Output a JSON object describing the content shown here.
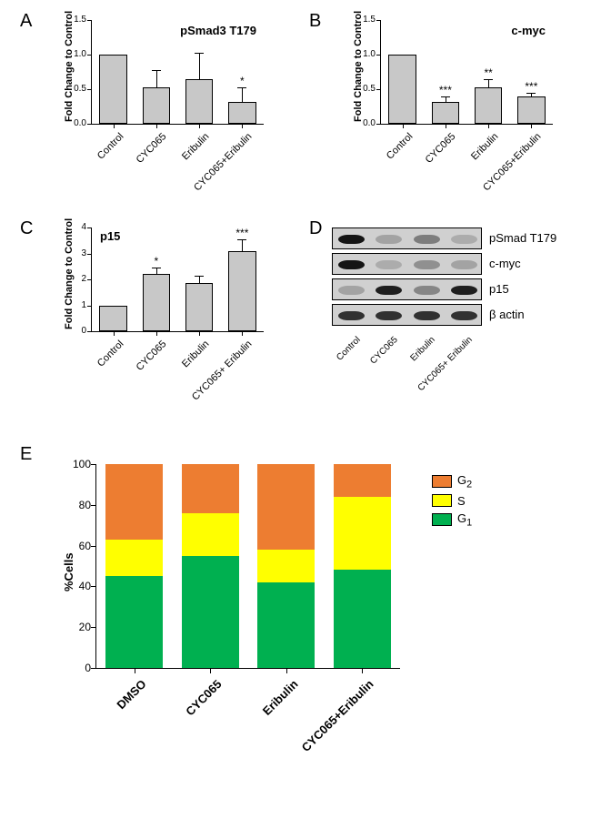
{
  "panel_labels": {
    "A": "A",
    "B": "B",
    "C": "C",
    "D": "D",
    "E": "E"
  },
  "ylabel_bars": "Fold Change to Control",
  "ylabel_stacked": "%Cells",
  "bar_color": "#c8c8c8",
  "bar_border": "#000000",
  "background": "#ffffff",
  "panelA": {
    "title": "pSmad3 T179",
    "categories": [
      "Control",
      "CYC065",
      "Eribulin",
      "CYC065+Eribulin"
    ],
    "values": [
      1.0,
      0.52,
      0.65,
      0.32
    ],
    "errors": [
      0,
      0.25,
      0.38,
      0.2
    ],
    "sig": [
      "",
      "",
      "",
      "*"
    ],
    "ylim": [
      0,
      1.5
    ],
    "yticks": [
      0.0,
      0.5,
      1.0,
      1.5
    ],
    "bar_width": 0.65
  },
  "panelB": {
    "title": "c-myc",
    "categories": [
      "Control",
      "CYC065",
      "Eribulin",
      "CYC065+Eribulin"
    ],
    "values": [
      1.0,
      0.32,
      0.52,
      0.4
    ],
    "errors": [
      0,
      0.07,
      0.13,
      0.05
    ],
    "sig": [
      "",
      "***",
      "**",
      "***"
    ],
    "ylim": [
      0,
      1.5
    ],
    "yticks": [
      0.0,
      0.5,
      1.0,
      1.5
    ],
    "bar_width": 0.65
  },
  "panelC": {
    "title": "p15",
    "categories": [
      "Control",
      "CYC065",
      "Eribulin",
      "CYC065+ Eribulin"
    ],
    "values": [
      1.0,
      2.2,
      1.85,
      3.1
    ],
    "errors": [
      0,
      0.25,
      0.3,
      0.45
    ],
    "sig": [
      "",
      "*",
      "",
      "***"
    ],
    "ylim": [
      0,
      4
    ],
    "yticks": [
      0,
      1,
      2,
      3,
      4
    ],
    "bar_width": 0.65
  },
  "panelD": {
    "rows": [
      "pSmad T179",
      "c-myc",
      "p15",
      "β actin"
    ],
    "lanes": [
      "Control",
      "CYC065",
      "Eribulin",
      "CYC065+ Eribulin"
    ],
    "intensity": {
      "pSmad T179": [
        1.0,
        0.25,
        0.45,
        0.2
      ],
      "c-myc": [
        1.0,
        0.2,
        0.35,
        0.25
      ],
      "p15": [
        0.25,
        0.95,
        0.4,
        0.95
      ],
      "β actin": [
        0.85,
        0.85,
        0.85,
        0.85
      ]
    },
    "row_bg": "#d0d0d0",
    "band_dark": "#1a1a1a",
    "band_light": "#888888"
  },
  "panelE": {
    "categories": [
      "DMSO",
      "CYC065",
      "Eribulin",
      "CYC065+Eribulin"
    ],
    "series": [
      "G1",
      "S",
      "G2"
    ],
    "colors": {
      "G1": "#00b050",
      "S": "#ffff00",
      "G2": "#ed7d31"
    },
    "data": {
      "DMSO": {
        "G1": 45,
        "S": 18,
        "G2": 37
      },
      "CYC065": {
        "G1": 55,
        "S": 21,
        "G2": 24
      },
      "Eribulin": {
        "G1": 42,
        "S": 16,
        "G2": 42
      },
      "CYC065+Eribulin": {
        "G1": 48,
        "S": 36,
        "G2": 16
      }
    },
    "ylim": [
      0,
      100
    ],
    "yticks": [
      0,
      20,
      40,
      60,
      80,
      100
    ],
    "legend_labels": {
      "G2": "G",
      "S": "S",
      "G1": "G"
    },
    "legend_sub": {
      "G2": "2",
      "S": "",
      "G1": "1"
    }
  }
}
